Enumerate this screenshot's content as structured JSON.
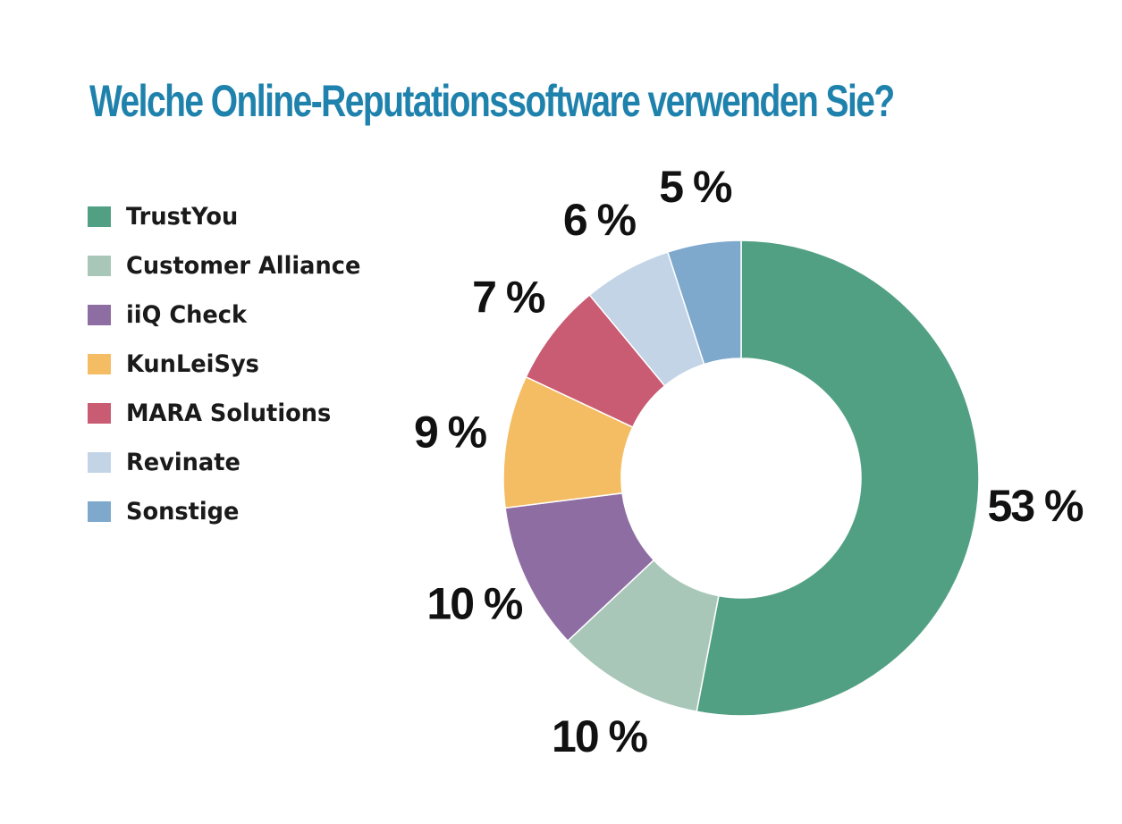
{
  "chart_data": {
    "type": "pie",
    "title": "Welche Online-Reputationssoftware verwenden Sie?",
    "title_color": "#1f82ad",
    "unit_suffix": " %",
    "legend_position": "left",
    "slices": [
      {
        "label": "TrustYou",
        "value": 53,
        "color": "#52a084"
      },
      {
        "label": "Customer Alliance",
        "value": 10,
        "color": "#a9c7b8"
      },
      {
        "label": "iiQ Check",
        "value": 10,
        "color": "#8e6da2"
      },
      {
        "label": "KunLeiSys",
        "value": 9,
        "color": "#f4bd63"
      },
      {
        "label": "MARA Solutions",
        "value": 7,
        "color": "#c95b72"
      },
      {
        "label": "Revinate",
        "value": 6,
        "color": "#c3d4e6"
      },
      {
        "label": "Sonstige",
        "value": 5,
        "color": "#7ea9cc"
      }
    ]
  }
}
